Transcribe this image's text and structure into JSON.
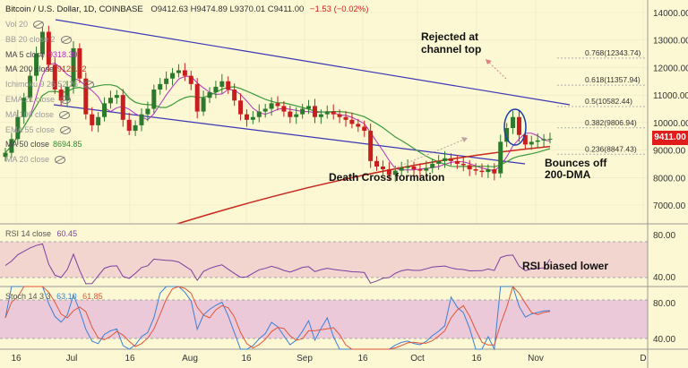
{
  "header": {
    "symbol": "Bitcoin / U.S. Dollar",
    "interval": "1D",
    "exchange": "COINBASE",
    "ohlc": "O9412.63 H9474.89 L9370.01 C9411.00",
    "change": "−1.53 (−0.02%)"
  },
  "legend": [
    {
      "label": "Vol 20",
      "value": "",
      "color": "#9a9a9a"
    },
    {
      "label": "BB 20 close 2",
      "value": "",
      "color": "#9a9a9a"
    },
    {
      "label": "MA 5 close",
      "value": "9318.39",
      "color": "#b030c0"
    },
    {
      "label": "MA 200 close",
      "value": "9129.62",
      "color": "#c8281e"
    },
    {
      "label": "Ichimoku 9 26 52 26",
      "value": "",
      "color": "#9a9a9a"
    },
    {
      "label": "EMA 21 close",
      "value": "",
      "color": "#9a9a9a"
    },
    {
      "label": "MA 100 close",
      "value": "",
      "color": "#9a9a9a"
    },
    {
      "label": "EMA 55 close",
      "value": "",
      "color": "#9a9a9a"
    },
    {
      "label": "MA 50 close",
      "value": "8694.85",
      "color": "#2e8b2e"
    },
    {
      "label": "MA 20 close",
      "value": "",
      "color": "#9a9a9a"
    }
  ],
  "last_price": "9411.00",
  "annotations": {
    "rejected": [
      "Rejected at",
      "channel top"
    ],
    "death_cross": "Death Cross formation",
    "bounce": [
      "Bounces off",
      "200-DMA"
    ],
    "rsi": "RSI biased lower"
  },
  "rsi_legend": {
    "label": "RSI 14 close",
    "value": "60.45"
  },
  "stoch_legend": {
    "label": "Stoch 14 3 3",
    "k": "63.10",
    "d": "61.85"
  },
  "fib_levels": [
    {
      "label": "0.768(12343.74)",
      "price": 12343.74
    },
    {
      "label": "0.618(11357.94)",
      "price": 11357.94
    },
    {
      "label": "0.5(10582.44)",
      "price": 10582.44
    },
    {
      "label": "0.382(9806.94)",
      "price": 9806.94
    },
    {
      "label": "0.236(8847.43)",
      "price": 8847.43
    }
  ],
  "colors": {
    "up": "#2c7a2c",
    "down": "#c81e1e",
    "channel": "#3a35b5",
    "ma200": "#c8281e",
    "ma50": "#3a9a3a",
    "ma5": "#b030c0",
    "rsi": "#7b3fa0",
    "k": "#3a7fd5",
    "d": "#e0553a"
  },
  "chart_data": {
    "type": "candlestick",
    "title": "Bitcoin / U.S. Dollar 1D COINBASE",
    "price_axis_ticks": [
      "14000.00",
      "13000.00",
      "12000.00",
      "11000.00",
      "10000.00",
      "9000.00",
      "8000.00",
      "7000.00"
    ],
    "price_range": [
      6000,
      14200
    ],
    "time_axis_ticks": [
      "16",
      "Jul",
      "16",
      "Aug",
      "16",
      "Sep",
      "16",
      "Oct",
      "16",
      "Nov",
      "D"
    ],
    "rsi_axis_ticks": [
      "80.00",
      "40.00"
    ],
    "stoch_axis_ticks": [
      "80.00",
      "40.00"
    ],
    "close_series": [
      8900,
      9400,
      10200,
      10900,
      11700,
      12500,
      13300,
      12100,
      11200,
      10800,
      11300,
      12700,
      11600,
      10300,
      9900,
      10200,
      10700,
      10900,
      11000,
      10100,
      9700,
      9900,
      10300,
      10500,
      11200,
      11400,
      11600,
      11800,
      11900,
      11700,
      11400,
      10400,
      10900,
      11100,
      11300,
      11500,
      11200,
      10800,
      10300,
      10100,
      10200,
      10400,
      10500,
      10700,
      10600,
      10400,
      10200,
      10300,
      10500,
      10600,
      10200,
      10300,
      10400,
      10300,
      10200,
      10100,
      9950,
      9850,
      9700,
      8600,
      8400,
      8300,
      8100,
      8250,
      8350,
      8400,
      8300,
      8250,
      8350,
      8500,
      8600,
      8700,
      8600,
      8500,
      8450,
      8300,
      8250,
      8200,
      8300,
      8150,
      9300,
      9800,
      10200,
      9550,
      9200,
      9300,
      9350,
      9400,
      9411
    ]
  }
}
